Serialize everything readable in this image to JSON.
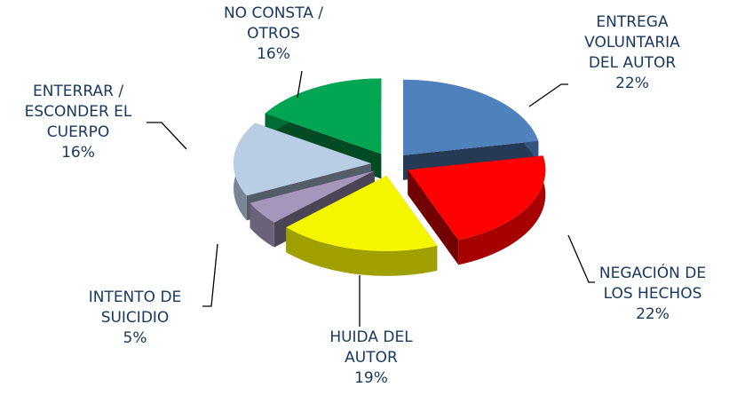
{
  "chart_data": {
    "type": "pie3d",
    "categories": [
      "ENTREGA VOLUNTARIA DEL AUTOR",
      "NEGACIÓN DE LOS HECHOS",
      "HUIDA DEL AUTOR",
      "INTENTO DE SUICIDIO",
      "ENTERRAR / ESCONDER EL CUERPO",
      "NO CONSTA / OTROS"
    ],
    "values": [
      22,
      22,
      19,
      5,
      16,
      16
    ],
    "value_labels": [
      "22%",
      "22%",
      "19%",
      "5%",
      "16%",
      "16%"
    ],
    "colors": [
      "#4f81bd",
      "#ff0000",
      "#f5f500",
      "#a596bc",
      "#b9cde5",
      "#00a651"
    ]
  }
}
